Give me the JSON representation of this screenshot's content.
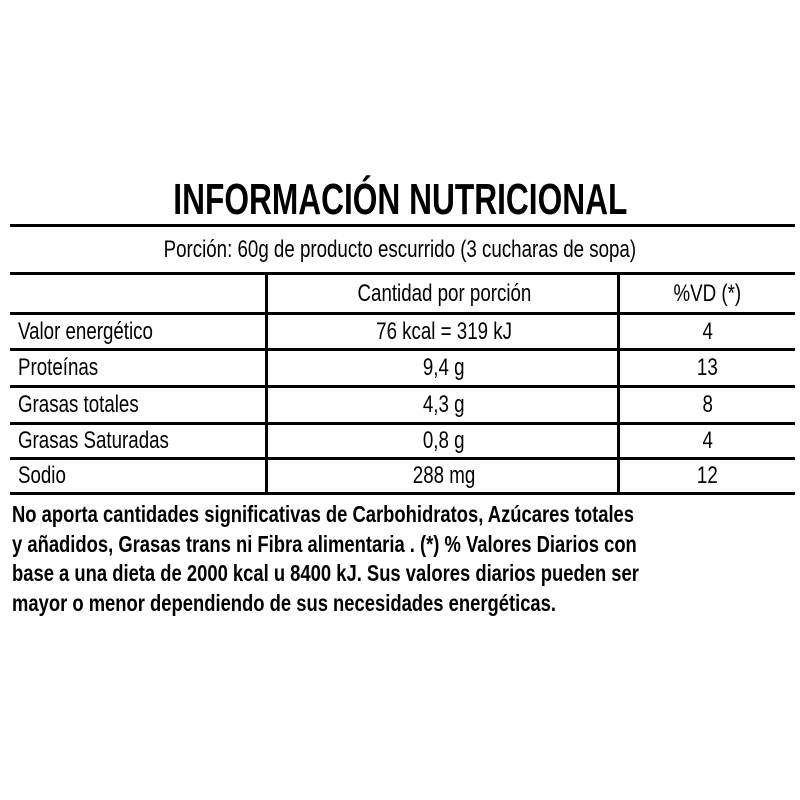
{
  "title": "INFORMACIÓN NUTRICIONAL",
  "portion": "Porción: 60g de producto escurrido (3 cucharas de sopa)",
  "headers": [
    "",
    "Cantidad por porción",
    "%VD (*)"
  ],
  "rows": [
    {
      "name": "Valor energético",
      "amount": "76 kcal = 319 kJ",
      "vd": "4"
    },
    {
      "name": "Proteínas",
      "amount": "9,4 g",
      "vd": "13"
    },
    {
      "name": "Grasas totales",
      "amount": "4,3 g",
      "vd": "8"
    },
    {
      "name": "Grasas Saturadas",
      "amount": "0,8 g",
      "vd": "4"
    },
    {
      "name": "Sodio",
      "amount": "288 mg",
      "vd": "12"
    }
  ],
  "note_lines": [
    "No aporta cantidades significativas de Carbohidratos, Azúcares totales",
    "y añadidos, Grasas trans ni Fibra alimentaria . (*) % Valores Diarios con",
    "base a una dieta de 2000 kcal u 8400 kJ. Sus valores diarios pueden ser",
    "mayor o menor dependiendo de sus necesidades energéticas."
  ]
}
